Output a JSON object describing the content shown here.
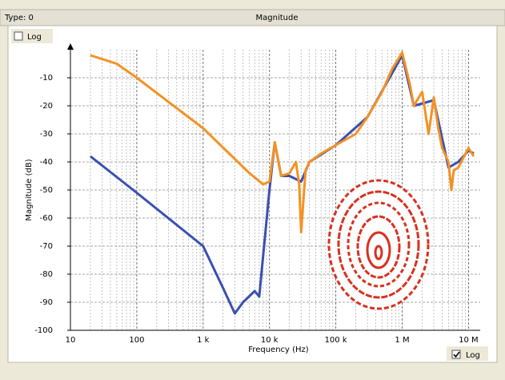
{
  "header": {
    "type_label": "Type: 0",
    "title": "Magnitude"
  },
  "controls": {
    "y_log_label": "Log",
    "y_log_checked": false,
    "x_log_label": "Log",
    "x_log_checked": true
  },
  "chart_data": {
    "type": "line",
    "xlabel": "Frequency (Hz)",
    "ylabel": "Magnitude (dB)",
    "xscale": "log",
    "grid": true,
    "xlim": [
      10,
      15000000
    ],
    "ylim": [
      -100,
      0
    ],
    "xticks": [
      10,
      100,
      {
        "value": 1000,
        "label": "1 k"
      },
      {
        "value": 10000,
        "label": "10 k"
      },
      {
        "value": 100000,
        "label": "100 k"
      },
      {
        "value": 1000000,
        "label": "1 M"
      },
      {
        "value": 10000000,
        "label": "10 M"
      }
    ],
    "yticks": [
      -100,
      -90,
      -80,
      -70,
      -60,
      -50,
      -40,
      -30,
      -20,
      -10
    ],
    "series": [
      {
        "color": "#3a4fb0",
        "x": [
          20,
          100,
          1000,
          2000,
          3000,
          4000,
          6000,
          7000,
          10000,
          12000,
          15000,
          20000,
          30000,
          40000,
          100000,
          300000,
          1000000,
          1500000,
          3000000,
          5000000,
          7000000,
          10000000,
          12000000
        ],
        "values": [
          -38,
          -51,
          -70,
          -85,
          -94,
          -90,
          -86,
          -88,
          -50,
          -33,
          -45,
          -45,
          -47,
          -40,
          -34,
          -24,
          -2,
          -20,
          -18,
          -42,
          -40,
          -36,
          -37
        ]
      },
      {
        "color": "#f39224",
        "x": [
          20,
          50,
          100,
          1000,
          5000,
          8000,
          10000,
          12000,
          15000,
          20000,
          25000,
          28000,
          30000,
          35000,
          40000,
          60000,
          100000,
          200000,
          300000,
          500000,
          700000,
          1000000,
          1300000,
          1500000,
          2000000,
          2500000,
          3000000,
          3500000,
          4000000,
          5000000,
          5500000,
          6000000,
          7000000,
          10000000,
          12000000
        ],
        "values": [
          -2,
          -5,
          -10,
          -28,
          -44,
          -48,
          -47,
          -33,
          -45,
          -44,
          -40,
          -48,
          -65,
          -43,
          -40,
          -37,
          -34,
          -30,
          -24,
          -15,
          -7,
          -1,
          -12,
          -20,
          -15,
          -30,
          -17,
          -28,
          -35,
          -40,
          -50,
          -43,
          -42,
          -35,
          -38
        ]
      }
    ]
  }
}
